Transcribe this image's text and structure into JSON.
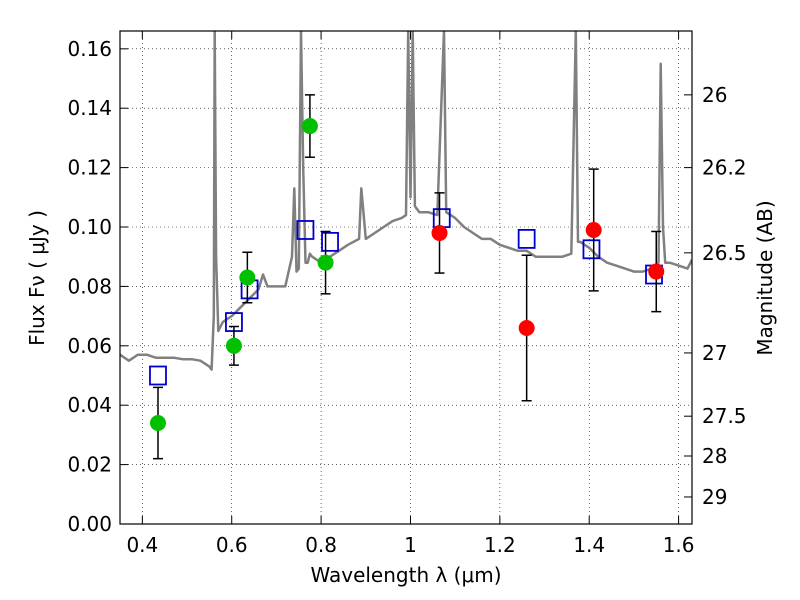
{
  "chart_data": {
    "type": "scatter",
    "xlabel": "Wavelength  λ (μm)",
    "ylabel": "Flux  Fν  ( μJy )",
    "ylabel_right": "Magnitude (AB)",
    "xlim": [
      0.35,
      1.63
    ],
    "ylim": [
      0.0,
      0.166
    ],
    "grid": true,
    "x_ticks": [
      0.4,
      0.6,
      0.8,
      1.0,
      1.2,
      1.4,
      1.6
    ],
    "x_tick_labels": [
      "0.4",
      "0.6",
      "0.8",
      "1",
      "1.2",
      "1.4",
      "1.6"
    ],
    "y_ticks": [
      0.0,
      0.02,
      0.04,
      0.06,
      0.08,
      0.1,
      0.12,
      0.14,
      0.16
    ],
    "y_tick_labels": [
      "0.00",
      "0.02",
      "0.04",
      "0.06",
      "0.08",
      "0.10",
      "0.12",
      "0.14",
      "0.16"
    ],
    "right_ticks": [
      {
        "flux": 0.1445,
        "label": "26"
      },
      {
        "flux": 0.12,
        "label": "26.2"
      },
      {
        "flux": 0.0913,
        "label": "26.5"
      },
      {
        "flux": 0.0576,
        "label": "27"
      },
      {
        "flux": 0.0363,
        "label": "27.5"
      },
      {
        "flux": 0.0229,
        "label": "28"
      },
      {
        "flux": 0.0091,
        "label": "29"
      }
    ],
    "series": [
      {
        "kind": "line",
        "color": "#808080",
        "x": [
          0.35,
          0.37,
          0.39,
          0.41,
          0.43,
          0.45,
          0.47,
          0.49,
          0.51,
          0.53,
          0.55,
          0.555,
          0.56,
          0.562,
          0.565,
          0.57,
          0.58,
          0.6,
          0.62,
          0.64,
          0.66,
          0.67,
          0.68,
          0.7,
          0.72,
          0.735,
          0.74,
          0.745,
          0.75,
          0.755,
          0.76,
          0.765,
          0.77,
          0.775,
          0.78,
          0.8,
          0.82,
          0.84,
          0.86,
          0.885,
          0.89,
          0.9,
          0.92,
          0.94,
          0.96,
          0.98,
          0.99,
          0.995,
          1.0,
          1.005,
          1.01,
          1.02,
          1.04,
          1.06,
          1.075,
          1.08,
          1.1,
          1.12,
          1.14,
          1.16,
          1.18,
          1.2,
          1.22,
          1.24,
          1.26,
          1.28,
          1.3,
          1.32,
          1.34,
          1.36,
          1.37,
          1.375,
          1.38,
          1.4,
          1.42,
          1.44,
          1.46,
          1.48,
          1.5,
          1.52,
          1.54,
          1.555,
          1.56,
          1.565,
          1.57,
          1.58,
          1.6,
          1.62,
          1.63
        ],
        "y": [
          0.057,
          0.055,
          0.057,
          0.057,
          0.056,
          0.056,
          0.056,
          0.0555,
          0.0555,
          0.055,
          0.053,
          0.052,
          0.07,
          0.166,
          0.09,
          0.065,
          0.068,
          0.07,
          0.073,
          0.076,
          0.079,
          0.084,
          0.08,
          0.08,
          0.08,
          0.09,
          0.113,
          0.085,
          0.086,
          0.166,
          0.12,
          0.088,
          0.088,
          0.091,
          0.09,
          0.088,
          0.09,
          0.092,
          0.094,
          0.096,
          0.113,
          0.096,
          0.098,
          0.1,
          0.102,
          0.103,
          0.104,
          0.166,
          0.11,
          0.166,
          0.107,
          0.105,
          0.105,
          0.104,
          0.166,
          0.105,
          0.103,
          0.1,
          0.098,
          0.096,
          0.096,
          0.094,
          0.093,
          0.092,
          0.092,
          0.09,
          0.09,
          0.09,
          0.09,
          0.091,
          0.166,
          0.095,
          0.095,
          0.093,
          0.09,
          0.088,
          0.087,
          0.086,
          0.085,
          0.085,
          0.086,
          0.088,
          0.155,
          0.1,
          0.088,
          0.088,
          0.087,
          0.086,
          0.089
        ]
      },
      {
        "kind": "points",
        "marker": "square-open",
        "color": "#0000cc",
        "x": [
          0.435,
          0.605,
          0.64,
          0.765,
          0.82,
          1.07,
          1.26,
          1.405,
          1.545
        ],
        "y": [
          0.05,
          0.068,
          0.079,
          0.099,
          0.095,
          0.103,
          0.096,
          0.0925,
          0.084
        ]
      },
      {
        "kind": "points",
        "marker": "circle",
        "color": "#00c000",
        "x": [
          0.435,
          0.605,
          0.635,
          0.775,
          0.81
        ],
        "y": [
          0.034,
          0.06,
          0.083,
          0.134,
          0.088
        ],
        "yerr": [
          0.012,
          0.0065,
          0.0085,
          0.0105,
          0.0105
        ]
      },
      {
        "kind": "points",
        "marker": "circle",
        "color": "#ff0000",
        "x": [
          1.065,
          1.26,
          1.41,
          1.55
        ],
        "y": [
          0.098,
          0.066,
          0.099,
          0.085
        ],
        "yerr": [
          0.0135,
          0.0245,
          0.0205,
          0.0135
        ]
      }
    ]
  }
}
